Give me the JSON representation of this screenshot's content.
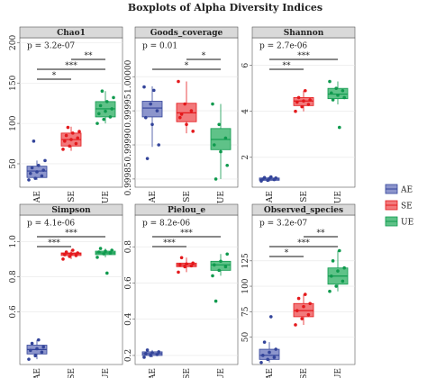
{
  "title": "Boxplots of Alpha Diversity Indices",
  "legend": [
    {
      "name": "AE",
      "color": "#33449a",
      "fill": "#8c95cc"
    },
    {
      "name": "SE",
      "color": "#e4191c",
      "fill": "#f2797b"
    },
    {
      "name": "UE",
      "color": "#0f9a4e",
      "fill": "#5fc288"
    }
  ],
  "chart_data": [
    {
      "type": "box",
      "title": "Chao1",
      "annotation": "p = 3.2e-07",
      "categories": [
        "AE",
        "SE",
        "UE"
      ],
      "ylim": [
        21,
        206
      ],
      "yticks": [
        50,
        100,
        150,
        200
      ],
      "grid": true,
      "boxes": [
        {
          "low": 30,
          "q1": 33,
          "median": 41,
          "q3": 47,
          "high": 54
        },
        {
          "low": 66,
          "q1": 72,
          "median": 80,
          "q3": 88,
          "high": 96
        },
        {
          "low": 100,
          "q1": 108,
          "median": 118,
          "q3": 127,
          "high": 140
        }
      ],
      "points": [
        [
          30,
          32,
          35,
          38,
          40,
          42,
          45,
          48,
          54,
          78
        ],
        [
          68,
          72,
          75,
          78,
          80,
          82,
          85,
          88,
          90,
          95
        ],
        [
          100,
          105,
          108,
          112,
          115,
          118,
          122,
          127,
          132,
          140
        ]
      ],
      "comparisons": [
        {
          "from": "SE",
          "to": "UE",
          "label": "**"
        },
        {
          "from": "AE",
          "to": "UE",
          "label": "***"
        },
        {
          "from": "AE",
          "to": "SE",
          "label": "*"
        }
      ]
    },
    {
      "type": "box",
      "title": "Goods_coverage",
      "annotation": "p = 0.01",
      "categories": [
        "AE",
        "SE",
        "UE"
      ],
      "ylim": [
        0.999838,
        1.000057
      ],
      "yticks": [
        {
          "value": 0.99985,
          "label": "0.99985"
        },
        {
          "value": 0.9999,
          "label": "0.99990"
        },
        {
          "value": 0.99995,
          "label": "0.99995"
        },
        {
          "value": 1,
          "label": "1.00000"
        }
      ],
      "grid": true,
      "boxes": [
        {
          "low": 0.999897,
          "q1": 0.999941,
          "median": 0.999954,
          "q3": 0.999964,
          "high": 0.999986
        },
        {
          "low": 0.999917,
          "q1": 0.999934,
          "median": 0.999947,
          "q3": 0.999961,
          "high": 0.999993
        },
        {
          "low": 0.99985,
          "q1": 0.999893,
          "median": 0.999908,
          "q3": 0.999924,
          "high": 0.99996
        }
      ],
      "points": [
        [
          0.999985,
          0.99996,
          0.99995,
          0.99994,
          0.99993,
          0.9999,
          0.99988,
          0.99998
        ],
        [
          0.999993,
          0.99996,
          0.99995,
          0.99994,
          0.99993,
          0.99992,
          0.999945
        ],
        [
          0.99996,
          0.99993,
          0.99991,
          0.9999,
          0.99989,
          0.99987,
          0.99985
        ]
      ],
      "comparisons": [
        {
          "from": "SE",
          "to": "UE",
          "label": "*"
        },
        {
          "from": "AE",
          "to": "UE",
          "label": "*"
        }
      ]
    },
    {
      "type": "box",
      "title": "Shannon",
      "annotation": "p = 2.7e-06",
      "categories": [
        "AE",
        "SE",
        "UE"
      ],
      "ylim": [
        0.7,
        7.2
      ],
      "yticks": [
        2,
        4,
        6
      ],
      "grid": true,
      "boxes": [
        {
          "low": 0.95,
          "q1": 1,
          "median": 1.05,
          "q3": 1.1,
          "high": 1.15
        },
        {
          "low": 4,
          "q1": 4.25,
          "median": 4.45,
          "q3": 4.6,
          "high": 4.9
        },
        {
          "low": 4.3,
          "q1": 4.55,
          "median": 4.75,
          "q3": 5,
          "high": 5.3
        }
      ],
      "points": [
        [
          0.97,
          1,
          1.03,
          1.05,
          1.08,
          1.1,
          1.12,
          1.15
        ],
        [
          4,
          4.2,
          4.3,
          4.4,
          4.45,
          4.5,
          4.6,
          4.9
        ],
        [
          5.3,
          5,
          4.9,
          4.8,
          4.7,
          4.6,
          4.5,
          3.3
        ]
      ],
      "comparisons": [
        {
          "from": "AE",
          "to": "UE",
          "label": "***"
        },
        {
          "from": "AE",
          "to": "SE",
          "label": "**"
        }
      ]
    },
    {
      "type": "box",
      "title": "Simpson",
      "annotation": "p = 4.1e-06",
      "categories": [
        "AE",
        "SE",
        "UE"
      ],
      "ylim": [
        0.3,
        1.15
      ],
      "yticks": [
        0.6,
        0.8,
        {
          "value": 1,
          "label": "1.0"
        }
      ],
      "grid": true,
      "boxes": [
        {
          "low": 0.33,
          "q1": 0.36,
          "median": 0.385,
          "q3": 0.41,
          "high": 0.44
        },
        {
          "low": 0.9,
          "q1": 0.92,
          "median": 0.93,
          "q3": 0.935,
          "high": 0.95
        },
        {
          "low": 0.91,
          "q1": 0.925,
          "median": 0.935,
          "q3": 0.945,
          "high": 0.96
        }
      ],
      "points": [
        [
          0.33,
          0.35,
          0.37,
          0.38,
          0.39,
          0.4,
          0.42,
          0.44
        ],
        [
          0.9,
          0.915,
          0.92,
          0.925,
          0.93,
          0.935,
          0.94,
          0.95
        ],
        [
          0.91,
          0.93,
          0.935,
          0.94,
          0.945,
          0.95,
          0.96,
          0.82
        ]
      ],
      "comparisons": [
        {
          "from": "AE",
          "to": "UE",
          "label": "***"
        },
        {
          "from": "AE",
          "to": "SE",
          "label": "***"
        }
      ]
    },
    {
      "type": "box",
      "title": "Pielou_e",
      "annotation": "p = 8.2e-06",
      "categories": [
        "AE",
        "SE",
        "UE"
      ],
      "ylim": [
        0.15,
        0.975
      ],
      "yticks": [
        0.2,
        0.4,
        0.6,
        0.8
      ],
      "grid": true,
      "boxes": [
        {
          "low": 0.19,
          "q1": 0.2,
          "median": 0.21,
          "q3": 0.22,
          "high": 0.23
        },
        {
          "low": 0.66,
          "q1": 0.69,
          "median": 0.7,
          "q3": 0.71,
          "high": 0.74
        },
        {
          "low": 0.64,
          "q1": 0.67,
          "median": 0.7,
          "q3": 0.72,
          "high": 0.76
        }
      ],
      "points": [
        [
          0.19,
          0.2,
          0.205,
          0.21,
          0.215,
          0.22,
          0.23
        ],
        [
          0.66,
          0.69,
          0.695,
          0.7,
          0.705,
          0.71,
          0.74
        ],
        [
          0.64,
          0.67,
          0.69,
          0.7,
          0.72,
          0.76,
          0.5
        ]
      ],
      "comparisons": [
        {
          "from": "AE",
          "to": "UE",
          "label": "***"
        },
        {
          "from": "AE",
          "to": "SE",
          "label": "***"
        }
      ]
    },
    {
      "type": "box",
      "title": "Observed_species",
      "annotation": "p = 3.2e-07",
      "categories": [
        "AE",
        "SE",
        "UE"
      ],
      "ylim": [
        23,
        170
      ],
      "yticks": [
        50,
        75,
        100,
        125
      ],
      "grid": true,
      "boxes": [
        {
          "low": 25,
          "q1": 28,
          "median": 32,
          "q3": 38,
          "high": 45
        },
        {
          "low": 62,
          "q1": 70,
          "median": 76,
          "q3": 83,
          "high": 92
        },
        {
          "low": 95,
          "q1": 102,
          "median": 110,
          "q3": 118,
          "high": 135
        }
      ],
      "points": [
        [
          25,
          28,
          30,
          32,
          35,
          38,
          45,
          70
        ],
        [
          62,
          68,
          72,
          76,
          80,
          83,
          88,
          92
        ],
        [
          95,
          100,
          105,
          110,
          115,
          118,
          125,
          135
        ]
      ],
      "comparisons": [
        {
          "from": "SE",
          "to": "UE",
          "label": "**"
        },
        {
          "from": "AE",
          "to": "UE",
          "label": "***"
        },
        {
          "from": "AE",
          "to": "SE",
          "label": "*"
        }
      ]
    }
  ]
}
